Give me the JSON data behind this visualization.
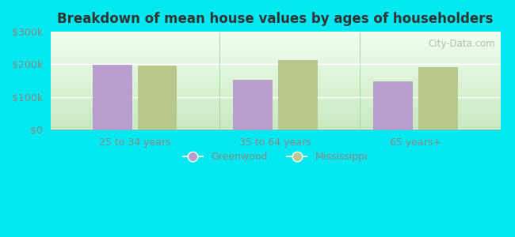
{
  "title": "Breakdown of mean house values by ages of householders",
  "categories": [
    "25 to 34 years",
    "35 to 64 years",
    "65 years+"
  ],
  "greenwood_values": [
    198000,
    152000,
    148000
  ],
  "mississippi_values": [
    196000,
    213000,
    192000
  ],
  "ylim": [
    0,
    300000
  ],
  "yticks": [
    0,
    100000,
    200000,
    300000
  ],
  "ytick_labels": [
    "$0",
    "$100k",
    "$200k",
    "$300k"
  ],
  "bar_color_greenwood": "#b89ece",
  "bar_color_mississippi": "#b8c88a",
  "background_outer": "#00e8f0",
  "background_inner": "#d8f0d0",
  "title_color": "#333333",
  "tick_color": "#888888",
  "legend_greenwood_label": "Greenwood",
  "legend_mississippi_label": "Mississippi",
  "bar_width": 0.28,
  "watermark": "City-Data.com"
}
